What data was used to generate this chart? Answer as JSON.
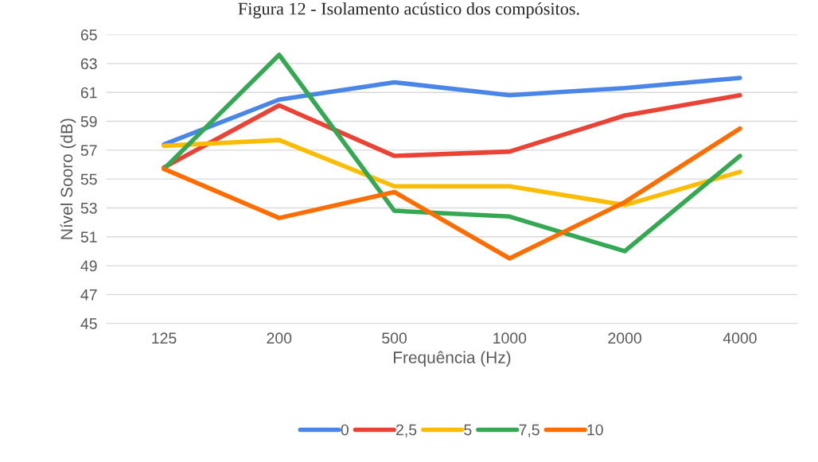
{
  "chart_data": {
    "type": "line",
    "title": "Figura 12 - Isolamento acústico dos compósitos.",
    "xlabel": "Frequência (Hz)",
    "ylabel": "Nível Sooro (dB)",
    "categories": [
      "125",
      "200",
      "500",
      "1000",
      "2000",
      "4000"
    ],
    "series": [
      {
        "name": "0",
        "color": "#4a86e8",
        "values": [
          57.4,
          60.5,
          61.7,
          60.8,
          61.3,
          62.0
        ]
      },
      {
        "name": "2,5",
        "color": "#ea4335",
        "values": [
          55.8,
          60.1,
          56.6,
          56.9,
          59.4,
          60.8
        ]
      },
      {
        "name": "5",
        "color": "#fbbc04",
        "values": [
          57.3,
          57.7,
          54.5,
          54.5,
          53.2,
          55.5
        ]
      },
      {
        "name": "7,5",
        "color": "#34a853",
        "values": [
          55.7,
          63.6,
          52.8,
          52.4,
          50.0,
          56.6
        ]
      },
      {
        "name": "10",
        "color": "#ff6d01",
        "values": [
          55.7,
          52.3,
          54.1,
          49.5,
          53.4,
          58.5
        ]
      }
    ],
    "ylim": [
      45,
      65
    ],
    "yticks": [
      45,
      47,
      49,
      51,
      53,
      55,
      57,
      59,
      61,
      63,
      65
    ],
    "grid": "y",
    "legend": "bottom",
    "marker": "none",
    "line_style": "solid"
  }
}
